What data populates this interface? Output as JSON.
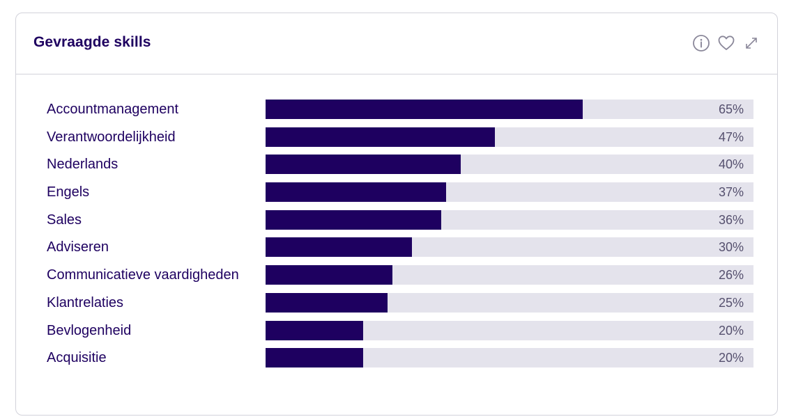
{
  "card": {
    "title": "Gevraagde skills"
  },
  "icons": {
    "info": "info-icon",
    "favorite": "heart-icon",
    "expand": "expand-icon"
  },
  "colors": {
    "accent": "#1e0060",
    "track": "#e4e3ec",
    "border": "#d2d2da"
  },
  "chart_data": {
    "type": "bar",
    "orientation": "horizontal",
    "categories": [
      "Accountmanagement",
      "Verantwoordelijkheid",
      "Nederlands",
      "Engels",
      "Sales",
      "Adviseren",
      "Communicatieve vaardigheden",
      "Klantrelaties",
      "Bevlogenheid",
      "Acquisitie"
    ],
    "values": [
      65,
      47,
      40,
      37,
      36,
      30,
      26,
      25,
      20,
      20
    ],
    "value_labels": [
      "65%",
      "47%",
      "40%",
      "37%",
      "36%",
      "30%",
      "26%",
      "25%",
      "20%",
      "20%"
    ],
    "xlim": [
      0,
      100
    ],
    "grid": false,
    "legend": "none"
  }
}
